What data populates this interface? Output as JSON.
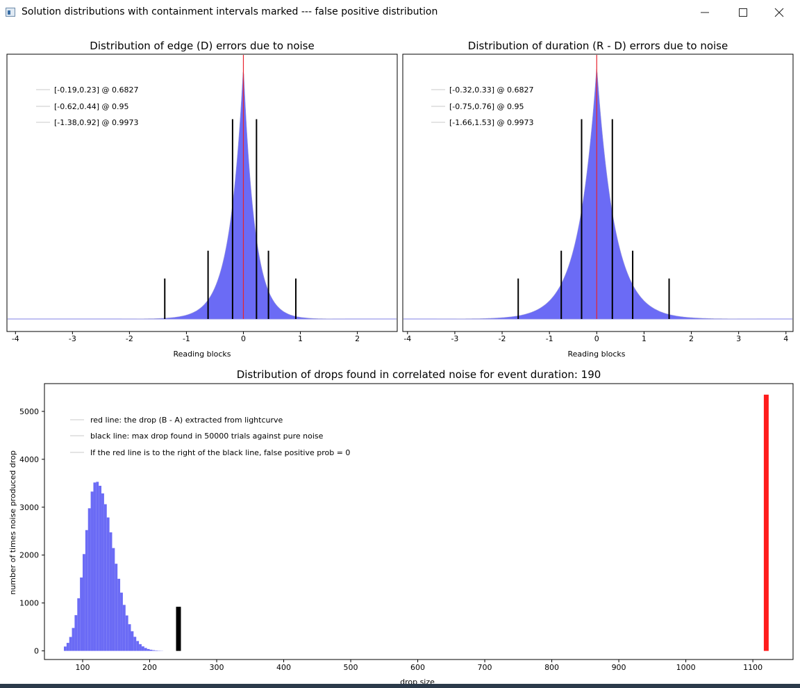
{
  "window": {
    "title": "Solution distributions with containment intervals marked --- false positive distribution",
    "controls": [
      "minimize-icon",
      "maximize-icon",
      "close-icon"
    ]
  },
  "chart_data": [
    {
      "type": "bar",
      "title": "Distribution of edge (D) errors due to noise",
      "xlabel": "Reading blocks",
      "ylabel": "",
      "xlim": [
        -4.15,
        2.7
      ],
      "ylim": [
        0,
        1.0
      ],
      "x_ticks": [
        -4,
        -3,
        -2,
        -1,
        0,
        1,
        2
      ],
      "distribution": {
        "center": 0.0,
        "peak": 1.0,
        "left_scale": 0.24,
        "right_scale": 0.2,
        "color": "#6b6bf5"
      },
      "marker_line": {
        "x": 0,
        "color": "#e8242e"
      },
      "interval_lines": [
        {
          "x": -0.19,
          "height": 0.79
        },
        {
          "x": 0.23,
          "height": 0.79
        },
        {
          "x": -0.62,
          "height": 0.27
        },
        {
          "x": 0.44,
          "height": 0.27
        },
        {
          "x": -1.38,
          "height": 0.16
        },
        {
          "x": 0.92,
          "height": 0.16
        }
      ],
      "legend": [
        "[-0.19,0.23] @ 0.6827",
        "[-0.62,0.44] @ 0.95",
        "[-1.38,0.92] @ 0.9973"
      ]
    },
    {
      "type": "bar",
      "title": "Distribution of duration (R - D) errors due to noise",
      "xlabel": "Reading blocks",
      "ylabel": "",
      "xlim": [
        -4.1,
        4.15
      ],
      "ylim": [
        0,
        1.0
      ],
      "x_ticks": [
        -4,
        -3,
        -2,
        -1,
        0,
        1,
        2,
        3,
        4
      ],
      "distribution": {
        "center": 0.0,
        "peak": 1.0,
        "left_scale": 0.38,
        "right_scale": 0.38,
        "color": "#6b6bf5"
      },
      "marker_line": {
        "x": 0,
        "color": "#e8242e"
      },
      "interval_lines": [
        {
          "x": -0.32,
          "height": 0.79
        },
        {
          "x": 0.33,
          "height": 0.79
        },
        {
          "x": -0.75,
          "height": 0.27
        },
        {
          "x": 0.76,
          "height": 0.27
        },
        {
          "x": -1.66,
          "height": 0.16
        },
        {
          "x": 1.53,
          "height": 0.16
        }
      ],
      "legend": [
        "[-0.32,0.33] @ 0.6827",
        "[-0.75,0.76] @ 0.95",
        "[-1.66,1.53] @ 0.9973"
      ]
    },
    {
      "type": "bar",
      "title": "Distribution of drops found in correlated noise for event duration: 190",
      "xlabel": "drop size",
      "ylabel": "number of times noise produced drop",
      "xlim": [
        43,
        1160
      ],
      "ylim": [
        -180,
        5580
      ],
      "x_ticks": [
        100,
        200,
        300,
        400,
        500,
        600,
        700,
        800,
        900,
        1000,
        1100
      ],
      "y_ticks": [
        0,
        1000,
        2000,
        3000,
        4000,
        5000
      ],
      "distribution": {
        "start": 72,
        "end": 218,
        "bin_width": 4,
        "mode": 120,
        "peak": 3540,
        "left_scale": 17,
        "right_scale": 26,
        "color": "#6b6bf5"
      },
      "lines": [
        {
          "name": "black line",
          "x": 243,
          "y_top": 920,
          "color": "#000000"
        },
        {
          "name": "red line",
          "x": 1120,
          "y_top": 5350,
          "color": "#ff1c1c"
        }
      ],
      "legend": [
        "red line: the drop (B - A) extracted from lightcurve",
        "black line: max drop found in 50000 trials against pure noise",
        "If the red line is to the right of the black line, false positive prob = 0"
      ]
    }
  ]
}
